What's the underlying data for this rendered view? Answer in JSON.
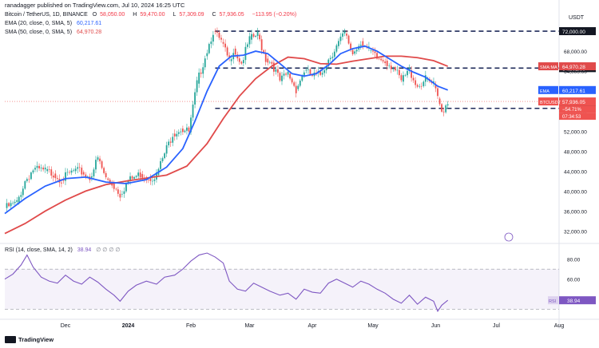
{
  "header": {
    "published": "ranadagger published on TradingView.com, Jul 10, 2024 16:25 UTC",
    "symbol": "Bitcoin / TetherUS, 1D, BINANCE",
    "ohlc": [
      {
        "k": "O",
        "v": "58,050.00"
      },
      {
        "k": "H",
        "v": "59,470.00"
      },
      {
        "k": "L",
        "v": "57,309.09"
      },
      {
        "k": "C",
        "v": "57,936.05"
      },
      {
        "k": "",
        "v": "−113.95 (−0.20%)"
      }
    ],
    "ema_legend": {
      "label": "EMA (20, close, 0, SMA, 5)",
      "value": "60,217.61"
    },
    "sma_legend": {
      "label": "SMA (50, close, 0, SMA, 5)",
      "value": "64,970.28"
    },
    "rsi_legend": {
      "label": "RSI (14, close, SMA, 14, 2)",
      "value": "38.94",
      "extra": "∅ ∅ ∅ ∅"
    }
  },
  "footer": {
    "brand": "TradingView"
  },
  "colors": {
    "up": "#26a69a",
    "down": "#ef5350",
    "ema": "#2962ff",
    "sma": "#e04a4a",
    "rsi": "#7e57c2",
    "level": "#1e2a5a"
  },
  "chart_data": [
    {
      "type": "candlestick",
      "title": "Bitcoin / TetherUS, 1D, BINANCE",
      "ylabel": "USDT",
      "ylim": [
        30000,
        76000
      ],
      "y_ticks": [
        "32,000.00",
        "36,000.00",
        "40,000.00",
        "44,000.00",
        "48,000.00",
        "52,000.00",
        "56,000.00",
        "60,000.00",
        "64,000.00",
        "68,000.00"
      ],
      "x_ticks": [
        "Dec",
        "2024",
        "Feb",
        "Mar",
        "Apr",
        "May",
        "Jun",
        "Jul",
        "Aug"
      ],
      "x_tick_days": [
        30,
        61,
        92,
        121,
        152,
        182,
        213,
        243,
        274
      ],
      "level_lines": [
        {
          "label": "72,000.00",
          "value": 72000
        },
        {
          "label": "64,602.00",
          "value": 64602
        },
        {
          "label": "56,552.00",
          "value": 56552
        }
      ],
      "price_tags": [
        {
          "name": "SMA:MA",
          "label": "64,970.28",
          "value": 64970.28,
          "color": "#e04a4a"
        },
        {
          "name": "EMA",
          "label": "60,217.61",
          "value": 60217.61,
          "color": "#2962ff"
        },
        {
          "name": "BTCUSDT",
          "label": "57,936.05",
          "sub": [
            "−54.71%",
            "07:34:53"
          ],
          "value": 57936.05,
          "color": "#ef5350"
        }
      ],
      "series": {
        "close": [
          [
            0,
            36600
          ],
          [
            6,
            37600
          ],
          [
            10,
            42000
          ],
          [
            14,
            44300
          ],
          [
            20,
            44000
          ],
          [
            24,
            43500
          ],
          [
            28,
            42300
          ],
          [
            34,
            44000
          ],
          [
            38,
            43800
          ],
          [
            42,
            42700
          ],
          [
            46,
            46500
          ],
          [
            50,
            42500
          ],
          [
            53,
            41500
          ],
          [
            57,
            39400
          ],
          [
            61,
            42000
          ],
          [
            67,
            43400
          ],
          [
            71,
            42600
          ],
          [
            75,
            43200
          ],
          [
            79,
            47500
          ],
          [
            83,
            51500
          ],
          [
            87,
            52500
          ],
          [
            91,
            51800
          ],
          [
            95,
            61500
          ],
          [
            99,
            67000
          ],
          [
            103,
            72000
          ],
          [
            107,
            69800
          ],
          [
            111,
            66000
          ],
          [
            113,
            68500
          ],
          [
            117,
            65600
          ],
          [
            121,
            70300
          ],
          [
            125,
            71300
          ],
          [
            129,
            66500
          ],
          [
            132,
            65700
          ],
          [
            136,
            62000
          ],
          [
            140,
            63500
          ],
          [
            144,
            60400
          ],
          [
            148,
            64100
          ],
          [
            152,
            63000
          ],
          [
            156,
            63300
          ],
          [
            160,
            66400
          ],
          [
            164,
            69000
          ],
          [
            168,
            71500
          ],
          [
            172,
            67500
          ],
          [
            176,
            70000
          ],
          [
            180,
            68100
          ],
          [
            184,
            66500
          ],
          [
            188,
            66100
          ],
          [
            192,
            64800
          ],
          [
            196,
            61900
          ],
          [
            200,
            64200
          ],
          [
            204,
            61000
          ],
          [
            208,
            62300
          ],
          [
            212,
            61200
          ],
          [
            214,
            58500
          ],
          [
            216,
            55900
          ],
          [
            219,
            57936
          ]
        ],
        "ema20": [
          [
            0,
            35500
          ],
          [
            10,
            38500
          ],
          [
            20,
            41000
          ],
          [
            30,
            42500
          ],
          [
            40,
            42800
          ],
          [
            50,
            41800
          ],
          [
            60,
            41500
          ],
          [
            70,
            42300
          ],
          [
            80,
            44800
          ],
          [
            88,
            48500
          ],
          [
            94,
            54000
          ],
          [
            100,
            60000
          ],
          [
            106,
            65000
          ],
          [
            112,
            67000
          ],
          [
            118,
            67200
          ],
          [
            124,
            68000
          ],
          [
            130,
            67500
          ],
          [
            136,
            65500
          ],
          [
            142,
            63500
          ],
          [
            148,
            63000
          ],
          [
            154,
            63500
          ],
          [
            160,
            65200
          ],
          [
            166,
            67500
          ],
          [
            172,
            68500
          ],
          [
            178,
            69000
          ],
          [
            184,
            68000
          ],
          [
            190,
            66500
          ],
          [
            196,
            65000
          ],
          [
            202,
            63800
          ],
          [
            208,
            62800
          ],
          [
            214,
            61000
          ],
          [
            219,
            60217
          ]
        ],
        "sma50": [
          [
            0,
            31500
          ],
          [
            10,
            33500
          ],
          [
            20,
            36000
          ],
          [
            30,
            38200
          ],
          [
            40,
            40000
          ],
          [
            50,
            41300
          ],
          [
            60,
            42000
          ],
          [
            70,
            42600
          ],
          [
            80,
            43200
          ],
          [
            90,
            45000
          ],
          [
            100,
            49500
          ],
          [
            108,
            54500
          ],
          [
            116,
            59000
          ],
          [
            124,
            62500
          ],
          [
            132,
            65000
          ],
          [
            140,
            66800
          ],
          [
            148,
            66500
          ],
          [
            156,
            65500
          ],
          [
            164,
            65400
          ],
          [
            172,
            66000
          ],
          [
            180,
            66500
          ],
          [
            188,
            67000
          ],
          [
            196,
            67000
          ],
          [
            204,
            66700
          ],
          [
            212,
            66100
          ],
          [
            219,
            64970
          ]
        ]
      }
    },
    {
      "type": "line",
      "title": "RSI (14, close, SMA, 14, 2)",
      "ylim": [
        20,
        90
      ],
      "y_ticks": [
        "80.00",
        "60.00"
      ],
      "bands": [
        70,
        30
      ],
      "series": [
        {
          "name": "RSI",
          "last": "38.94",
          "values": [
            [
              0,
              60
            ],
            [
              4,
              65
            ],
            [
              8,
              74
            ],
            [
              11,
              84
            ],
            [
              14,
              72
            ],
            [
              18,
              62
            ],
            [
              22,
              58
            ],
            [
              26,
              56
            ],
            [
              30,
              64
            ],
            [
              34,
              58
            ],
            [
              38,
              55
            ],
            [
              42,
              62
            ],
            [
              46,
              57
            ],
            [
              50,
              50
            ],
            [
              54,
              44
            ],
            [
              57,
              38
            ],
            [
              61,
              48
            ],
            [
              65,
              54
            ],
            [
              70,
              58
            ],
            [
              75,
              55
            ],
            [
              79,
              62
            ],
            [
              84,
              64
            ],
            [
              88,
              70
            ],
            [
              92,
              78
            ],
            [
              96,
              84
            ],
            [
              100,
              86
            ],
            [
              104,
              82
            ],
            [
              108,
              76
            ],
            [
              111,
              58
            ],
            [
              115,
              50
            ],
            [
              119,
              48
            ],
            [
              123,
              56
            ],
            [
              127,
              52
            ],
            [
              131,
              48
            ],
            [
              136,
              44
            ],
            [
              140,
              46
            ],
            [
              144,
              40
            ],
            [
              148,
              50
            ],
            [
              152,
              47
            ],
            [
              156,
              46
            ],
            [
              160,
              56
            ],
            [
              164,
              60
            ],
            [
              168,
              56
            ],
            [
              172,
              52
            ],
            [
              176,
              58
            ],
            [
              180,
              55
            ],
            [
              184,
              50
            ],
            [
              188,
              46
            ],
            [
              192,
              40
            ],
            [
              196,
              36
            ],
            [
              200,
              44
            ],
            [
              204,
              35
            ],
            [
              208,
              42
            ],
            [
              212,
              38
            ],
            [
              214,
              28
            ],
            [
              216,
              34
            ],
            [
              219,
              38.94
            ]
          ]
        }
      ]
    }
  ]
}
